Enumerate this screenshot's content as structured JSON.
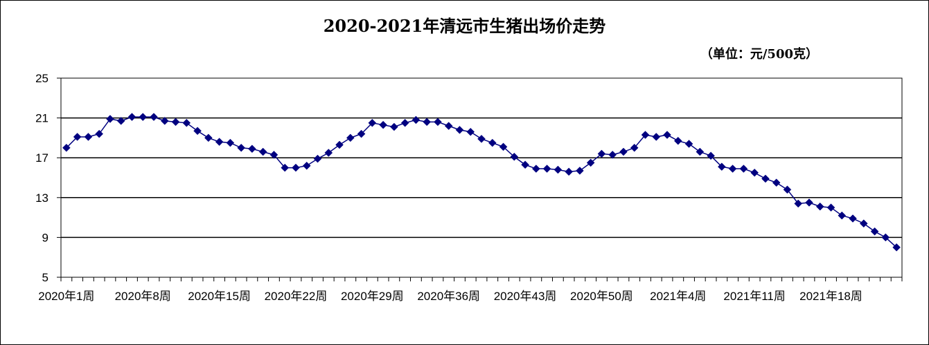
{
  "chart_data": {
    "type": "line",
    "title": "2020-2021年清远市生猪出场价走势",
    "unit": "（单位：元/500克）",
    "xlabel": "",
    "ylabel": "",
    "ylim": [
      5,
      25
    ],
    "yticks": [
      5,
      9,
      13,
      17,
      21,
      25
    ],
    "grid": true,
    "legend": "none",
    "x_tick_labels": [
      "2020年1周",
      "2020年8周",
      "2020年15周",
      "2020年22周",
      "2020年29周",
      "2020年36周",
      "2020年43周",
      "2020年50周",
      "2021年4周",
      "2021年11周",
      "2021年18周"
    ],
    "colors": {
      "line": "#000080",
      "marker": "#000080",
      "grid": "#000000"
    },
    "series": [
      {
        "values": [
          18.0,
          19.1,
          19.1,
          19.4,
          20.9,
          20.7,
          21.1,
          21.1,
          21.1,
          20.7,
          20.6,
          20.5,
          19.7,
          19.0,
          18.6,
          18.5,
          18.0,
          17.9,
          17.6,
          17.3,
          16.0,
          16.0,
          16.2,
          16.9,
          17.5,
          18.3,
          19.0,
          19.4,
          20.5,
          20.3,
          20.1,
          20.5,
          20.8,
          20.6,
          20.6,
          20.2,
          19.8,
          19.6,
          18.9,
          18.5,
          18.1,
          17.1,
          16.3,
          15.9,
          15.9,
          15.8,
          15.6,
          15.7,
          16.5,
          17.4,
          17.3,
          17.6,
          18.0,
          19.3,
          19.1,
          19.3,
          18.7,
          18.4,
          17.6,
          17.2,
          16.1,
          15.9,
          15.9,
          15.5,
          14.9,
          14.5,
          13.8,
          12.4,
          12.5,
          12.1,
          12.0,
          11.2,
          10.9,
          10.4,
          9.6,
          9.0,
          8.0
        ]
      }
    ]
  }
}
